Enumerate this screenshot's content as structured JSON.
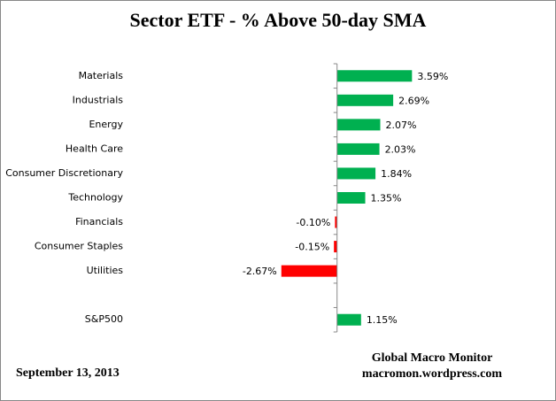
{
  "chart_data": {
    "type": "bar",
    "orientation": "horizontal",
    "title": "Sector ETF - % Above 50-day SMA",
    "categories": [
      "Materials",
      "Industrials",
      "Energy",
      "Health Care",
      "Consumer Discretionary",
      "Technology",
      "Financials",
      "Consumer Staples",
      "Utilities",
      null,
      "S&P500"
    ],
    "values": [
      3.59,
      2.69,
      2.07,
      2.03,
      1.84,
      1.35,
      -0.1,
      -0.15,
      -2.67,
      null,
      1.15
    ],
    "value_labels": [
      "3.59%",
      "2.69%",
      "2.07%",
      "2.03%",
      "1.84%",
      "1.35%",
      "-0.10%",
      "-0.15%",
      "-2.67%",
      null,
      "1.15%"
    ],
    "positive_color": "#00b050",
    "negative_color": "#ff0000",
    "xlim": [
      -10,
      4
    ],
    "date": "September 13, 2013",
    "source": [
      "Global Macro Monitor",
      "macromon.wordpress.com"
    ]
  }
}
